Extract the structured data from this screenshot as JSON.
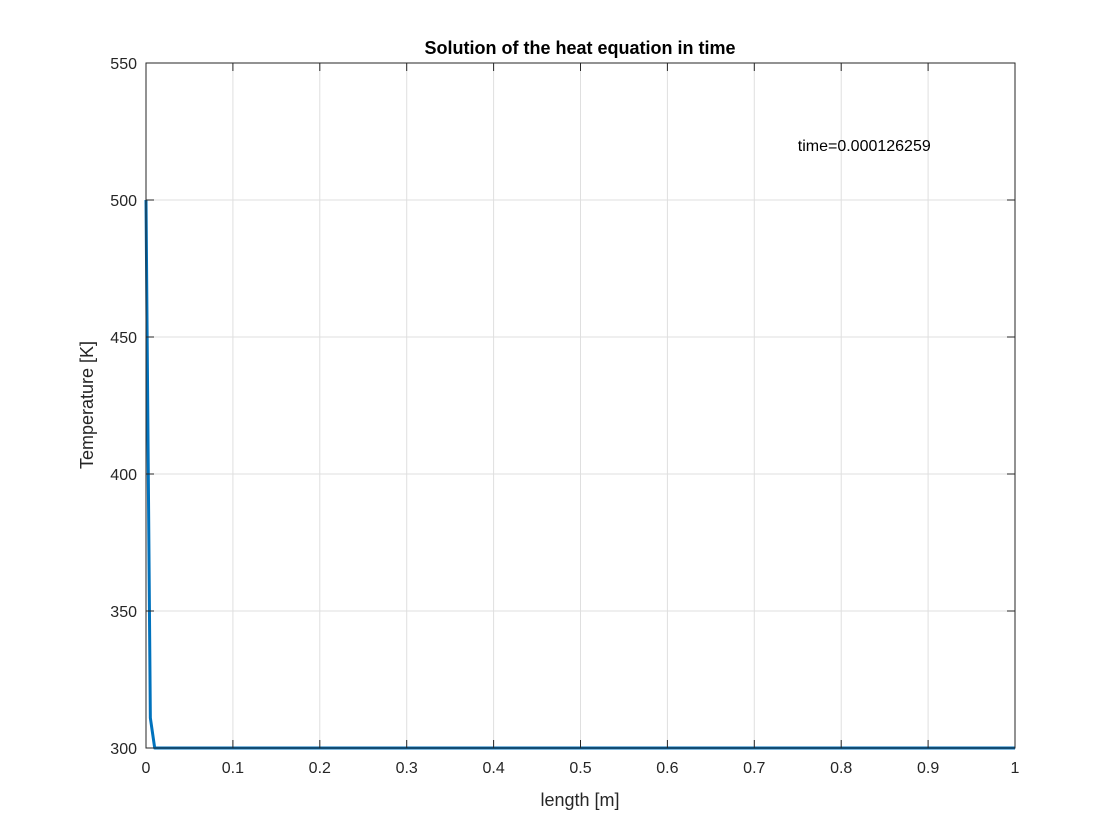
{
  "chart_data": {
    "type": "line",
    "title": "Solution of the heat equation in time",
    "xlabel": "length [m]",
    "ylabel": "Temperature [K]",
    "xlim": [
      0,
      1
    ],
    "ylim": [
      300,
      550
    ],
    "xticks": [
      0,
      0.1,
      0.2,
      0.3,
      0.4,
      0.5,
      0.6,
      0.7,
      0.8,
      0.9,
      1
    ],
    "xtick_labels": [
      "0",
      "0.1",
      "0.2",
      "0.3",
      "0.4",
      "0.5",
      "0.6",
      "0.7",
      "0.8",
      "0.9",
      "1"
    ],
    "yticks": [
      300,
      350,
      400,
      450,
      500,
      550
    ],
    "ytick_labels": [
      "300",
      "350",
      "400",
      "450",
      "500",
      "550"
    ],
    "grid": true,
    "annotation": {
      "text": "time=0.000126259",
      "x": 0.75,
      "y": 520
    },
    "series": [
      {
        "color": "#0072BD",
        "x": [
          0,
          0.005,
          0.01,
          0.02,
          0.1,
          0.3,
          0.5,
          0.7,
          0.9,
          1
        ],
        "y": [
          500,
          311,
          300,
          300,
          300,
          300,
          300,
          300,
          300,
          300
        ]
      }
    ]
  }
}
